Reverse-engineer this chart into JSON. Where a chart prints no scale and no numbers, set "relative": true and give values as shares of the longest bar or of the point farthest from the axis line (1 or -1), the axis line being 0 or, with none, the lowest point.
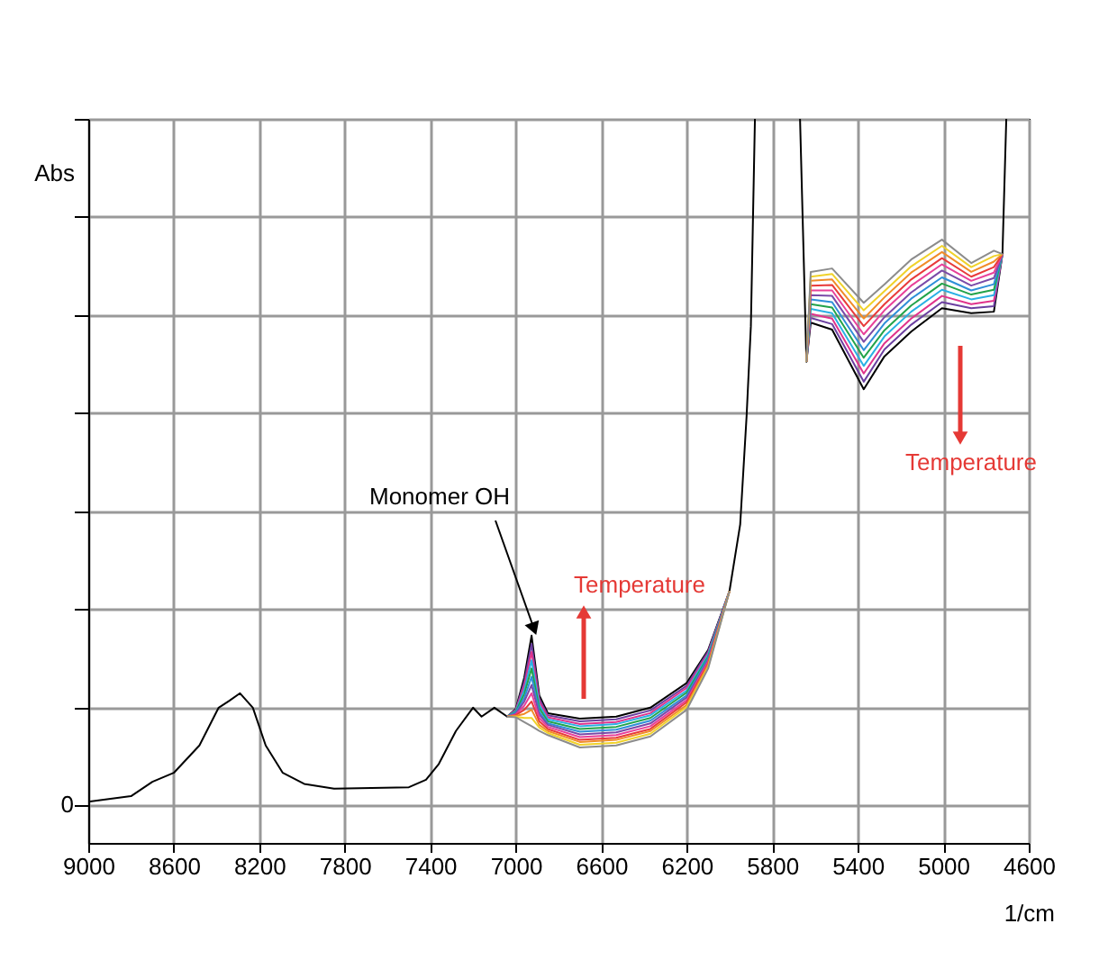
{
  "chart_data": {
    "type": "line",
    "relative": true,
    "xlabel": "1/cm",
    "ylabel": "Abs",
    "xlim": [
      9000,
      4600
    ],
    "xticks": [
      9000,
      8600,
      8200,
      7800,
      7400,
      7000,
      6600,
      6200,
      5800,
      5400,
      5000,
      4600
    ],
    "grid": true,
    "line_style": "solid",
    "annotations": [
      "Monomer OH",
      "Temperature",
      "Temperature",
      "0"
    ],
    "x": [
      9000,
      8800,
      8700,
      8600,
      8480,
      8390,
      8340,
      8290,
      8230,
      8170,
      8090,
      7990,
      7850,
      7500,
      7420,
      7360,
      7280,
      7200,
      7160,
      7100,
      7040,
      7000,
      6960,
      6926,
      6890,
      6850,
      6700,
      6530,
      6370,
      6200,
      6100,
      6000,
      5950,
      5920,
      5900,
      5881,
      5780,
      5670,
      5640,
      5620,
      5520,
      5372,
      5275,
      5150,
      5006,
      4869,
      4763,
      4723,
      4705
    ],
    "series": [
      {
        "color": "#000000",
        "values": [
          0.005,
          0.013,
          0.034,
          0.047,
          0.087,
          0.142,
          0.152,
          0.163,
          0.142,
          0.087,
          0.047,
          0.031,
          0.024,
          0.026,
          0.037,
          0.06,
          0.108,
          0.142,
          0.129,
          0.142,
          0.129,
          0.14,
          0.186,
          0.247,
          0.16,
          0.134,
          0.126,
          0.129,
          0.142,
          0.178,
          0.226,
          0.312,
          0.409,
          0.567,
          0.698,
          1.0,
          null,
          1.0,
          0.646,
          0.703,
          0.693,
          0.606,
          0.654,
          0.69,
          0.724,
          0.717,
          0.719,
          0.803,
          1.0
        ]
      },
      {
        "color": "#6b3fa0",
        "values": [
          null,
          null,
          null,
          null,
          null,
          null,
          null,
          null,
          null,
          null,
          null,
          null,
          null,
          null,
          null,
          null,
          null,
          null,
          null,
          null,
          0.129,
          0.139,
          0.18,
          0.235,
          0.155,
          0.131,
          0.122,
          0.125,
          0.138,
          0.174,
          0.224,
          0.312,
          null,
          null,
          null,
          null,
          null,
          null,
          0.646,
          0.71,
          0.701,
          0.617,
          0.664,
          0.7,
          0.733,
          0.724,
          0.727,
          0.803,
          null
        ]
      },
      {
        "color": "#e0338c",
        "values": [
          null,
          null,
          null,
          null,
          null,
          null,
          null,
          null,
          null,
          null,
          null,
          null,
          null,
          null,
          null,
          null,
          null,
          null,
          null,
          null,
          0.129,
          0.138,
          0.174,
          0.223,
          0.151,
          0.128,
          0.118,
          0.121,
          0.134,
          0.171,
          0.221,
          0.312,
          null,
          null,
          null,
          null,
          null,
          null,
          0.646,
          0.716,
          0.709,
          0.629,
          0.673,
          0.709,
          0.742,
          0.73,
          0.735,
          0.803,
          null
        ]
      },
      {
        "color": "#2ab0e4",
        "values": [
          null,
          null,
          null,
          null,
          null,
          null,
          null,
          null,
          null,
          null,
          null,
          null,
          null,
          null,
          null,
          null,
          null,
          null,
          null,
          null,
          0.129,
          0.137,
          0.168,
          0.211,
          0.146,
          0.125,
          0.115,
          0.118,
          0.131,
          0.167,
          0.219,
          0.312,
          null,
          null,
          null,
          null,
          null,
          null,
          0.646,
          0.723,
          0.717,
          0.64,
          0.683,
          0.719,
          0.751,
          0.737,
          0.743,
          0.803,
          null
        ]
      },
      {
        "color": "#22a34a",
        "values": [
          null,
          null,
          null,
          null,
          null,
          null,
          null,
          null,
          null,
          null,
          null,
          null,
          null,
          null,
          null,
          null,
          null,
          null,
          null,
          null,
          0.129,
          0.136,
          0.162,
          0.199,
          0.141,
          0.122,
          0.111,
          0.114,
          0.127,
          0.164,
          0.216,
          0.312,
          null,
          null,
          null,
          null,
          null,
          null,
          0.646,
          0.73,
          0.725,
          0.652,
          0.692,
          0.728,
          0.76,
          0.744,
          0.751,
          0.803,
          null
        ]
      },
      {
        "color": "#2f8fd8",
        "values": [
          null,
          null,
          null,
          null,
          null,
          null,
          null,
          null,
          null,
          null,
          null,
          null,
          null,
          null,
          null,
          null,
          null,
          null,
          null,
          null,
          0.129,
          0.135,
          0.156,
          0.187,
          0.136,
          0.119,
          0.107,
          0.11,
          0.123,
          0.16,
          0.214,
          0.312,
          null,
          null,
          null,
          null,
          null,
          null,
          0.646,
          0.737,
          0.733,
          0.663,
          0.702,
          0.738,
          0.769,
          0.75,
          0.759,
          0.803,
          null
        ]
      },
      {
        "color": "#7a4aa8",
        "values": [
          null,
          null,
          null,
          null,
          null,
          null,
          null,
          null,
          null,
          null,
          null,
          null,
          null,
          null,
          null,
          null,
          null,
          null,
          null,
          null,
          0.129,
          0.133,
          0.151,
          0.175,
          0.132,
          0.117,
          0.103,
          0.106,
          0.119,
          0.157,
          0.211,
          0.312,
          null,
          null,
          null,
          null,
          null,
          null,
          0.646,
          0.743,
          0.742,
          0.675,
          0.711,
          0.747,
          0.779,
          0.757,
          0.768,
          0.803,
          null
        ]
      },
      {
        "color": "#e8409a",
        "values": [
          null,
          null,
          null,
          null,
          null,
          null,
          null,
          null,
          null,
          null,
          null,
          null,
          null,
          null,
          null,
          null,
          null,
          null,
          null,
          null,
          0.129,
          0.132,
          0.145,
          0.163,
          0.127,
          0.114,
          0.099,
          0.102,
          0.115,
          0.153,
          0.209,
          0.312,
          null,
          null,
          null,
          null,
          null,
          null,
          0.646,
          0.75,
          0.75,
          0.686,
          0.721,
          0.757,
          0.788,
          0.764,
          0.776,
          0.803,
          null
        ]
      },
      {
        "color": "#e83a3a",
        "values": [
          null,
          null,
          null,
          null,
          null,
          null,
          null,
          null,
          null,
          null,
          null,
          null,
          null,
          null,
          null,
          null,
          null,
          null,
          null,
          null,
          0.129,
          0.131,
          0.139,
          0.151,
          0.122,
          0.111,
          0.095,
          0.098,
          0.111,
          0.15,
          0.206,
          0.312,
          null,
          null,
          null,
          null,
          null,
          null,
          0.646,
          0.757,
          0.758,
          0.698,
          0.73,
          0.766,
          0.797,
          0.77,
          0.784,
          0.803,
          null
        ]
      },
      {
        "color": "#f08c28",
        "values": [
          null,
          null,
          null,
          null,
          null,
          null,
          null,
          null,
          null,
          null,
          null,
          null,
          null,
          null,
          null,
          null,
          null,
          null,
          null,
          null,
          0.129,
          0.13,
          0.133,
          0.139,
          0.117,
          0.108,
          0.092,
          0.095,
          0.108,
          0.146,
          0.204,
          0.312,
          null,
          null,
          null,
          null,
          null,
          null,
          0.646,
          0.764,
          0.766,
          0.709,
          0.74,
          0.776,
          0.806,
          0.777,
          0.792,
          0.803,
          null
        ]
      },
      {
        "color": "#f0d22a",
        "values": [
          null,
          null,
          null,
          null,
          null,
          null,
          null,
          null,
          null,
          null,
          null,
          null,
          null,
          null,
          null,
          null,
          null,
          null,
          null,
          null,
          0.129,
          0.129,
          0.127,
          0.127,
          0.113,
          0.105,
          0.088,
          0.091,
          0.104,
          0.143,
          0.201,
          0.312,
          null,
          null,
          null,
          null,
          null,
          null,
          0.646,
          0.77,
          0.774,
          0.721,
          0.749,
          0.785,
          0.815,
          0.784,
          0.8,
          0.803,
          null
        ]
      },
      {
        "color": "#8c8c8c",
        "values": [
          null,
          null,
          null,
          null,
          null,
          null,
          null,
          null,
          null,
          null,
          null,
          null,
          null,
          null,
          null,
          null,
          null,
          null,
          null,
          null,
          0.129,
          0.128,
          0.121,
          0.115,
          0.108,
          0.102,
          0.084,
          0.087,
          0.1,
          0.139,
          0.199,
          0.312,
          null,
          null,
          null,
          null,
          null,
          null,
          0.646,
          0.777,
          0.782,
          0.732,
          0.759,
          0.795,
          0.824,
          0.79,
          0.808,
          0.803,
          null
        ]
      }
    ]
  }
}
